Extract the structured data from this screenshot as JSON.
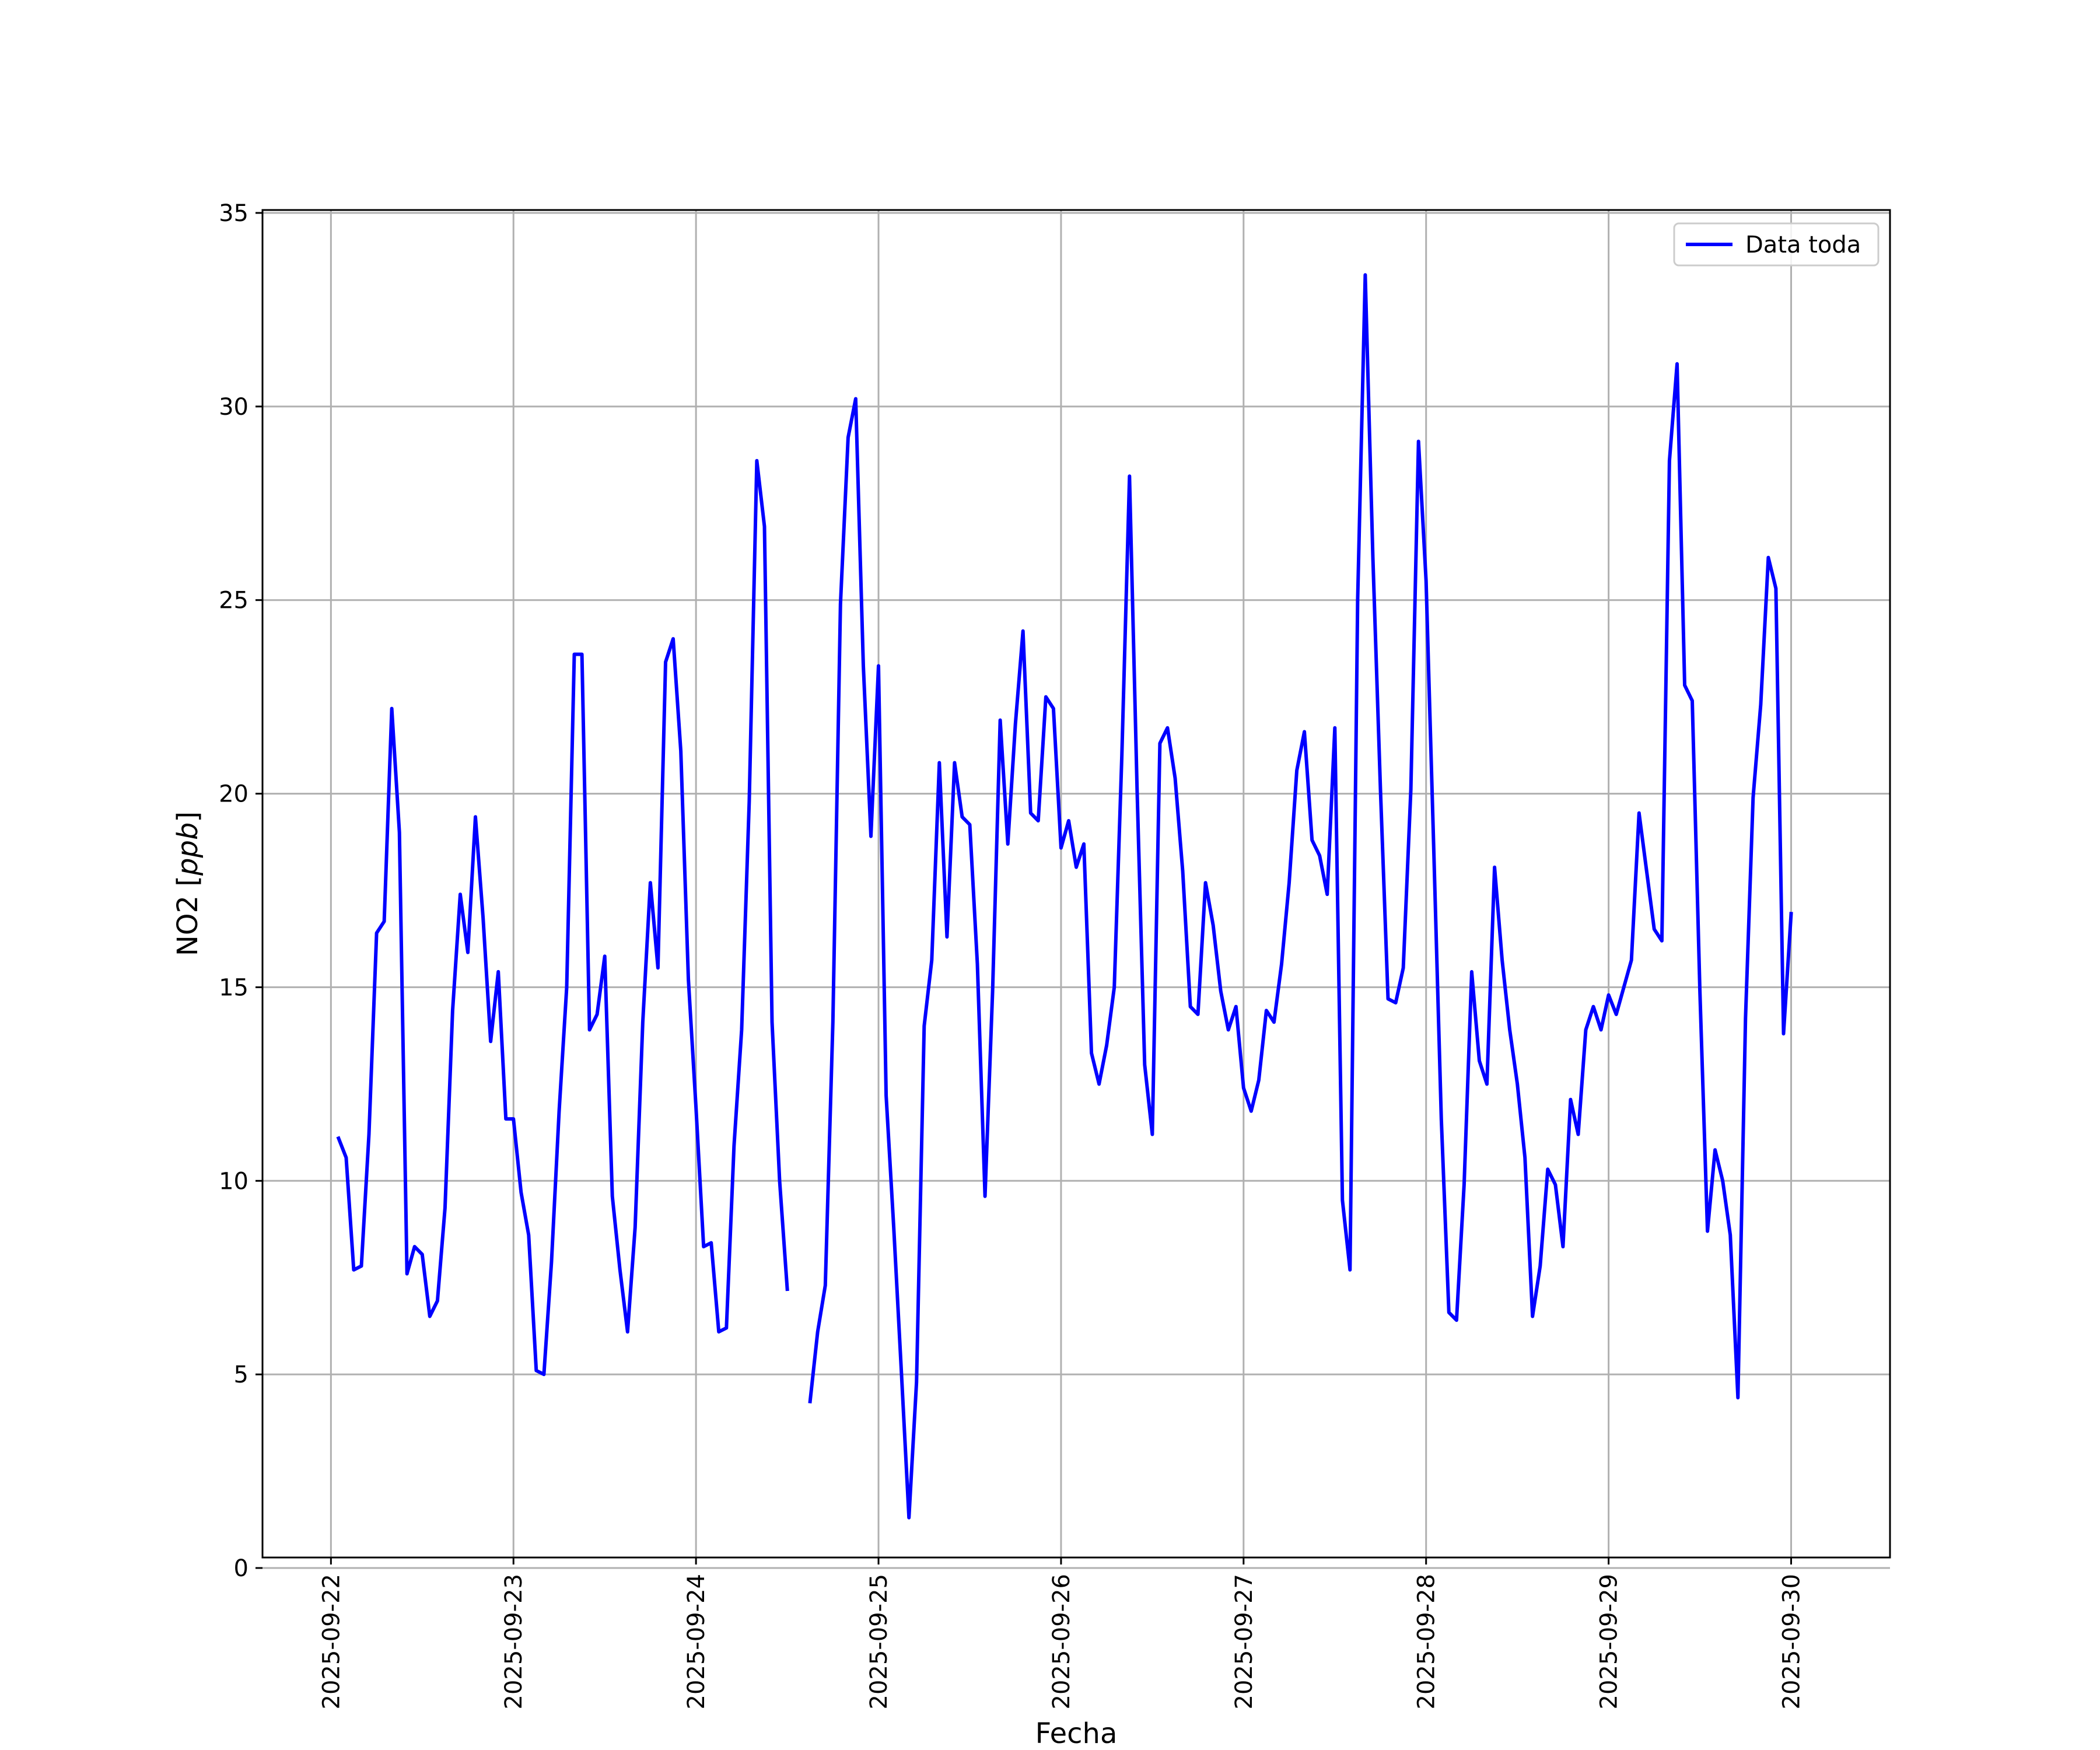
{
  "chart_data": {
    "type": "line",
    "xlabel": "Fecha",
    "ylabel_main": "NO2 [",
    "ylabel_unit": "ppb",
    "ylabel_close": "]",
    "ylim": [
      0,
      35
    ],
    "xlim": [
      "2025-09-21T15:00",
      "2025-09-30T13:00"
    ],
    "yticks": [
      0,
      5,
      10,
      15,
      20,
      25,
      30,
      35
    ],
    "xticks": [
      "2025-09-22",
      "2025-09-23",
      "2025-09-24",
      "2025-09-25",
      "2025-09-26",
      "2025-09-27",
      "2025-09-28",
      "2025-09-29",
      "2025-09-30"
    ],
    "grid": true,
    "legend_position": "top-right",
    "line_color": "#0000ff",
    "series": [
      {
        "name": "Data toda",
        "points": [
          [
            "2025-09-22T01:00",
            11.1
          ],
          [
            "2025-09-22T02:00",
            10.6
          ],
          [
            "2025-09-22T03:00",
            7.7
          ],
          [
            "2025-09-22T04:00",
            7.8
          ],
          [
            "2025-09-22T05:00",
            11.2
          ],
          [
            "2025-09-22T06:00",
            16.4
          ],
          [
            "2025-09-22T07:00",
            16.7
          ],
          [
            "2025-09-22T08:00",
            22.2
          ],
          [
            "2025-09-22T09:00",
            19.0
          ],
          [
            "2025-09-22T10:00",
            7.6
          ],
          [
            "2025-09-22T11:00",
            8.3
          ],
          [
            "2025-09-22T12:00",
            8.1
          ],
          [
            "2025-09-22T13:00",
            6.5
          ],
          [
            "2025-09-22T14:00",
            6.9
          ],
          [
            "2025-09-22T15:00",
            9.3
          ],
          [
            "2025-09-22T16:00",
            14.4
          ],
          [
            "2025-09-22T17:00",
            17.4
          ],
          [
            "2025-09-22T18:00",
            15.9
          ],
          [
            "2025-09-22T19:00",
            19.4
          ],
          [
            "2025-09-22T20:00",
            16.8
          ],
          [
            "2025-09-22T21:00",
            13.6
          ],
          [
            "2025-09-22T22:00",
            15.4
          ],
          [
            "2025-09-22T23:00",
            11.6
          ],
          [
            "2025-09-23T00:00",
            11.6
          ],
          [
            "2025-09-23T01:00",
            9.7
          ],
          [
            "2025-09-23T02:00",
            8.6
          ],
          [
            "2025-09-23T03:00",
            5.1
          ],
          [
            "2025-09-23T04:00",
            5.0
          ],
          [
            "2025-09-23T05:00",
            7.9
          ],
          [
            "2025-09-23T06:00",
            11.8
          ],
          [
            "2025-09-23T07:00",
            15.0
          ],
          [
            "2025-09-23T08:00",
            23.6
          ],
          [
            "2025-09-23T09:00",
            23.6
          ],
          [
            "2025-09-23T10:00",
            13.9
          ],
          [
            "2025-09-23T11:00",
            14.3
          ],
          [
            "2025-09-23T12:00",
            15.8
          ],
          [
            "2025-09-23T13:00",
            9.6
          ],
          [
            "2025-09-23T14:00",
            7.7
          ],
          [
            "2025-09-23T15:00",
            6.1
          ],
          [
            "2025-09-23T16:00",
            8.8
          ],
          [
            "2025-09-23T17:00",
            14.1
          ],
          [
            "2025-09-23T18:00",
            17.7
          ],
          [
            "2025-09-23T19:00",
            15.5
          ],
          [
            "2025-09-23T20:00",
            23.4
          ],
          [
            "2025-09-23T21:00",
            24.0
          ],
          [
            "2025-09-23T22:00",
            21.1
          ],
          [
            "2025-09-23T23:00",
            15.2
          ],
          [
            "2025-09-24T00:00",
            11.9
          ],
          [
            "2025-09-24T01:00",
            8.3
          ],
          [
            "2025-09-24T02:00",
            8.4
          ],
          [
            "2025-09-24T03:00",
            6.1
          ],
          [
            "2025-09-24T04:00",
            6.2
          ],
          [
            "2025-09-24T05:00",
            10.9
          ],
          [
            "2025-09-24T06:00",
            13.9
          ],
          [
            "2025-09-24T07:00",
            19.8
          ],
          [
            "2025-09-24T08:00",
            28.6
          ],
          [
            "2025-09-24T09:00",
            26.9
          ],
          [
            "2025-09-24T10:00",
            14.1
          ],
          [
            "2025-09-24T11:00",
            10.0
          ],
          [
            "2025-09-24T12:00",
            7.2
          ],
          [
            "2025-09-24T13:00",
            null
          ],
          [
            "2025-09-24T14:00",
            null
          ],
          [
            "2025-09-24T15:00",
            4.3
          ],
          [
            "2025-09-24T16:00",
            6.1
          ],
          [
            "2025-09-24T17:00",
            7.3
          ],
          [
            "2025-09-24T18:00",
            14.1
          ],
          [
            "2025-09-24T19:00",
            24.9
          ],
          [
            "2025-09-24T20:00",
            29.2
          ],
          [
            "2025-09-24T21:00",
            30.2
          ],
          [
            "2025-09-24T22:00",
            23.3
          ],
          [
            "2025-09-24T23:00",
            18.9
          ],
          [
            "2025-09-25T00:00",
            23.3
          ],
          [
            "2025-09-25T01:00",
            12.2
          ],
          [
            "2025-09-25T02:00",
            8.8
          ],
          [
            "2025-09-25T03:00",
            5.1
          ],
          [
            "2025-09-25T04:00",
            1.3
          ],
          [
            "2025-09-25T05:00",
            4.8
          ],
          [
            "2025-09-25T06:00",
            14.0
          ],
          [
            "2025-09-25T07:00",
            15.7
          ],
          [
            "2025-09-25T08:00",
            20.8
          ],
          [
            "2025-09-25T09:00",
            16.3
          ],
          [
            "2025-09-25T10:00",
            20.8
          ],
          [
            "2025-09-25T11:00",
            19.4
          ],
          [
            "2025-09-25T12:00",
            19.2
          ],
          [
            "2025-09-25T13:00",
            15.6
          ],
          [
            "2025-09-25T14:00",
            9.6
          ],
          [
            "2025-09-25T15:00",
            14.9
          ],
          [
            "2025-09-25T16:00",
            21.9
          ],
          [
            "2025-09-25T17:00",
            18.7
          ],
          [
            "2025-09-25T18:00",
            21.8
          ],
          [
            "2025-09-25T19:00",
            24.2
          ],
          [
            "2025-09-25T20:00",
            19.5
          ],
          [
            "2025-09-25T21:00",
            19.3
          ],
          [
            "2025-09-25T22:00",
            22.5
          ],
          [
            "2025-09-25T23:00",
            22.2
          ],
          [
            "2025-09-26T00:00",
            18.6
          ],
          [
            "2025-09-26T01:00",
            19.3
          ],
          [
            "2025-09-26T02:00",
            18.1
          ],
          [
            "2025-09-26T03:00",
            18.7
          ],
          [
            "2025-09-26T04:00",
            13.3
          ],
          [
            "2025-09-26T05:00",
            12.5
          ],
          [
            "2025-09-26T06:00",
            13.5
          ],
          [
            "2025-09-26T07:00",
            15.0
          ],
          [
            "2025-09-26T08:00",
            21.0
          ],
          [
            "2025-09-26T09:00",
            28.2
          ],
          [
            "2025-09-26T10:00",
            20.1
          ],
          [
            "2025-09-26T11:00",
            13.0
          ],
          [
            "2025-09-26T12:00",
            11.2
          ],
          [
            "2025-09-26T13:00",
            21.3
          ],
          [
            "2025-09-26T14:00",
            21.7
          ],
          [
            "2025-09-26T15:00",
            20.4
          ],
          [
            "2025-09-26T16:00",
            18.0
          ],
          [
            "2025-09-26T17:00",
            14.5
          ],
          [
            "2025-09-26T18:00",
            14.3
          ],
          [
            "2025-09-26T19:00",
            17.7
          ],
          [
            "2025-09-26T20:00",
            16.6
          ],
          [
            "2025-09-26T21:00",
            14.9
          ],
          [
            "2025-09-26T22:00",
            13.9
          ],
          [
            "2025-09-26T23:00",
            14.5
          ],
          [
            "2025-09-27T00:00",
            12.4
          ],
          [
            "2025-09-27T01:00",
            11.8
          ],
          [
            "2025-09-27T02:00",
            12.6
          ],
          [
            "2025-09-27T03:00",
            14.4
          ],
          [
            "2025-09-27T04:00",
            14.1
          ],
          [
            "2025-09-27T05:00",
            15.6
          ],
          [
            "2025-09-27T06:00",
            17.7
          ],
          [
            "2025-09-27T07:00",
            20.6
          ],
          [
            "2025-09-27T08:00",
            21.6
          ],
          [
            "2025-09-27T09:00",
            18.8
          ],
          [
            "2025-09-27T10:00",
            18.4
          ],
          [
            "2025-09-27T11:00",
            17.4
          ],
          [
            "2025-09-27T12:00",
            21.7
          ],
          [
            "2025-09-27T13:00",
            9.5
          ],
          [
            "2025-09-27T14:00",
            7.7
          ],
          [
            "2025-09-27T15:00",
            25.0
          ],
          [
            "2025-09-27T16:00",
            33.4
          ],
          [
            "2025-09-27T17:00",
            26.1
          ],
          [
            "2025-09-27T18:00",
            20.1
          ],
          [
            "2025-09-27T19:00",
            14.7
          ],
          [
            "2025-09-27T20:00",
            14.6
          ],
          [
            "2025-09-27T21:00",
            15.5
          ],
          [
            "2025-09-27T22:00",
            20.1
          ],
          [
            "2025-09-27T23:00",
            29.1
          ],
          [
            "2025-09-28T00:00",
            25.5
          ],
          [
            "2025-09-28T01:00",
            18.6
          ],
          [
            "2025-09-28T02:00",
            11.6
          ],
          [
            "2025-09-28T03:00",
            6.6
          ],
          [
            "2025-09-28T04:00",
            6.4
          ],
          [
            "2025-09-28T05:00",
            9.9
          ],
          [
            "2025-09-28T06:00",
            15.4
          ],
          [
            "2025-09-28T07:00",
            13.1
          ],
          [
            "2025-09-28T08:00",
            12.5
          ],
          [
            "2025-09-28T09:00",
            18.1
          ],
          [
            "2025-09-28T10:00",
            15.7
          ],
          [
            "2025-09-28T11:00",
            13.9
          ],
          [
            "2025-09-28T12:00",
            12.5
          ],
          [
            "2025-09-28T13:00",
            10.6
          ],
          [
            "2025-09-28T14:00",
            6.5
          ],
          [
            "2025-09-28T15:00",
            7.8
          ],
          [
            "2025-09-28T16:00",
            10.3
          ],
          [
            "2025-09-28T17:00",
            9.9
          ],
          [
            "2025-09-28T18:00",
            8.3
          ],
          [
            "2025-09-28T19:00",
            12.1
          ],
          [
            "2025-09-28T20:00",
            11.2
          ],
          [
            "2025-09-28T21:00",
            13.9
          ],
          [
            "2025-09-28T22:00",
            14.5
          ],
          [
            "2025-09-28T23:00",
            13.9
          ],
          [
            "2025-09-29T00:00",
            14.8
          ],
          [
            "2025-09-29T01:00",
            14.3
          ],
          [
            "2025-09-29T02:00",
            15.0
          ],
          [
            "2025-09-29T03:00",
            15.7
          ],
          [
            "2025-09-29T04:00",
            19.5
          ],
          [
            "2025-09-29T05:00",
            18.0
          ],
          [
            "2025-09-29T06:00",
            16.5
          ],
          [
            "2025-09-29T07:00",
            16.2
          ],
          [
            "2025-09-29T08:00",
            28.6
          ],
          [
            "2025-09-29T09:00",
            31.1
          ],
          [
            "2025-09-29T10:00",
            22.8
          ],
          [
            "2025-09-29T11:00",
            22.4
          ],
          [
            "2025-09-29T12:00",
            14.9
          ],
          [
            "2025-09-29T13:00",
            8.7
          ],
          [
            "2025-09-29T14:00",
            10.8
          ],
          [
            "2025-09-29T15:00",
            10.0
          ],
          [
            "2025-09-29T16:00",
            8.6
          ],
          [
            "2025-09-29T17:00",
            4.4
          ],
          [
            "2025-09-29T18:00",
            14.2
          ],
          [
            "2025-09-29T19:00",
            19.9
          ],
          [
            "2025-09-29T20:00",
            22.3
          ],
          [
            "2025-09-29T21:00",
            26.1
          ],
          [
            "2025-09-29T22:00",
            25.3
          ],
          [
            "2025-09-29T23:00",
            13.8
          ],
          [
            "2025-09-30T00:00",
            16.9
          ]
        ]
      }
    ]
  }
}
